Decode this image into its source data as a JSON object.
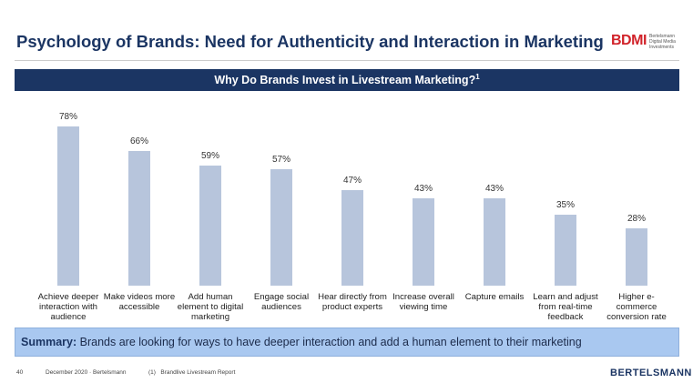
{
  "header": {
    "title": "Psychology of Brands: Need for Authenticity and Interaction in Marketing",
    "logo": "BDMI",
    "logo_subtitle": "Bertelsmann Digital Media Investments"
  },
  "chart_data": {
    "type": "bar",
    "title": "Why Do Brands Invest in Livestream Marketing?",
    "title_note": "1",
    "categories": [
      "Achieve deeper interaction with audience",
      "Make videos more accessible",
      "Add human element to digital marketing",
      "Engage social audiences",
      "Hear directly from product experts",
      "Increase overall viewing time",
      "Capture emails",
      "Learn and adjust from real-time feedback",
      "Higher e-commerce conversion rate"
    ],
    "values": [
      78,
      66,
      59,
      57,
      47,
      43,
      43,
      35,
      28
    ],
    "value_labels": [
      "78%",
      "66%",
      "59%",
      "57%",
      "47%",
      "43%",
      "43%",
      "35%",
      "28%"
    ],
    "color": "#b7c5dc"
  },
  "summary": {
    "label": "Summary:",
    "text": "Brands are looking for ways to have deeper interaction and add a human element to their marketing"
  },
  "footer": {
    "page": "40",
    "date": "December 2020 · Bertelsmann",
    "source": "(1)   Brandlive Livestream Report",
    "brand": "BERTELSMANN"
  }
}
